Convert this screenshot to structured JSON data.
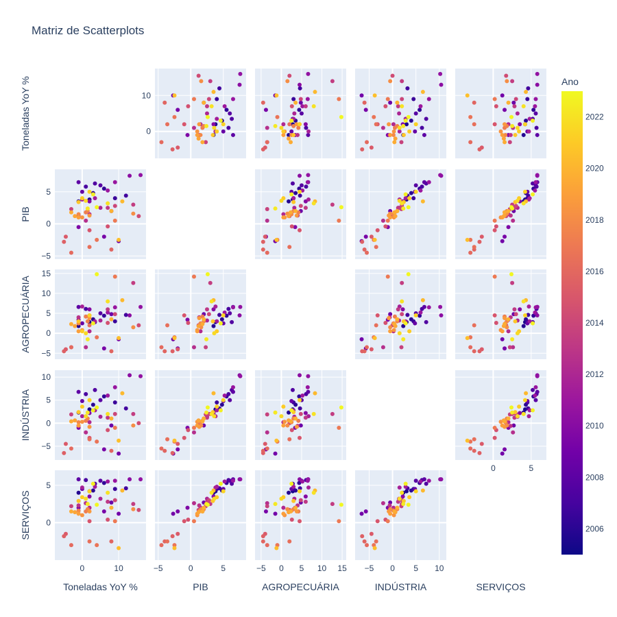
{
  "chart_data": {
    "type": "scatter",
    "title": "Matriz de Scatterplots",
    "variables": [
      "Toneladas YoY %",
      "PIB",
      "AGROPECUÁRIA",
      "INDÚSTRIA",
      "SERVIÇOS"
    ],
    "color_variable": "Ano",
    "colorbar": {
      "title": "Ano",
      "range": [
        2005,
        2023
      ],
      "ticks": [
        2006,
        2008,
        2010,
        2012,
        2014,
        2016,
        2018,
        2020,
        2022
      ],
      "colorscale": "plasma"
    },
    "axes": [
      {
        "name": "Toneladas YoY %",
        "range": [
          -7.5,
          17.5
        ],
        "ticks": [
          0,
          10
        ]
      },
      {
        "name": "PIB",
        "range": [
          -5.5,
          8.5
        ],
        "ticks": [
          -5,
          0,
          5
        ]
      },
      {
        "name": "AGROPECUÁRIA",
        "range": [
          -6.5,
          16
        ],
        "ticks": [
          -5,
          0,
          5,
          10,
          15
        ]
      },
      {
        "name": "INDÚSTRIA",
        "range": [
          -8,
          11.5
        ],
        "ticks": [
          -5,
          0,
          5,
          10
        ]
      },
      {
        "name": "SERVIÇOS",
        "range": [
          -5,
          7
        ],
        "ticks": [
          0,
          5
        ]
      }
    ],
    "diagonal_visible": false,
    "points": [
      {
        "ano": 2005.5,
        "values": [
          2,
          3.8,
          2.8,
          3.0,
          4.2
        ]
      },
      {
        "ano": 2005.8,
        "values": [
          -1,
          3.5,
          1.8,
          2.3,
          4.0
        ]
      },
      {
        "ano": 2006.0,
        "values": [
          3,
          4.8,
          3.5,
          4.0,
          4.3
        ]
      },
      {
        "ano": 2006.3,
        "values": [
          6,
          5.5,
          4.4,
          5.8,
          5.3
        ]
      },
      {
        "ano": 2006.6,
        "values": [
          9,
          4.0,
          3.0,
          4.5,
          4.5
        ]
      },
      {
        "ano": 2006.9,
        "values": [
          12,
          4.4,
          4.6,
          3.2,
          4.6
        ]
      },
      {
        "ano": 2007.2,
        "values": [
          1,
          5.8,
          6.1,
          6.3,
          5.7
        ]
      },
      {
        "ano": 2007.5,
        "values": [
          3.5,
          6.3,
          2.8,
          7.2,
          5.2
        ]
      },
      {
        "ano": 2007.8,
        "values": [
          5,
          6.0,
          5.0,
          5.0,
          5.6
        ]
      },
      {
        "ano": 2008.1,
        "values": [
          -1,
          6.5,
          6.6,
          6.8,
          5.8
        ]
      },
      {
        "ano": 2008.4,
        "values": [
          0,
          5.0,
          2.5,
          4.8,
          4.5
        ]
      },
      {
        "ano": 2008.7,
        "values": [
          8,
          2.0,
          4.8,
          -0.5,
          2.7
        ]
      },
      {
        "ano": 2009.0,
        "values": [
          10,
          -2.7,
          -1.5,
          -6.6,
          1.2
        ]
      },
      {
        "ano": 2009.3,
        "values": [
          6,
          -2.0,
          -3.8,
          -5.7,
          1.5
        ]
      },
      {
        "ano": 2009.6,
        "values": [
          -1,
          -0.5,
          3.4,
          -1.0,
          2.0
        ]
      },
      {
        "ano": 2009.9,
        "values": [
          2,
          3.5,
          6.0,
          2.2,
          3.5
        ]
      },
      {
        "ano": 2010.2,
        "values": [
          13,
          7.5,
          4.5,
          10.4,
          5.8
        ]
      },
      {
        "ano": 2010.5,
        "values": [
          16,
          7.6,
          6.6,
          10.2,
          5.8
        ]
      },
      {
        "ano": 2010.8,
        "values": [
          9,
          6.5,
          6.5,
          7.8,
          5.6
        ]
      },
      {
        "ano": 2011.0,
        "values": [
          7,
          5.2,
          5.2,
          6.0,
          5.5
        ]
      },
      {
        "ano": 2011.3,
        "values": [
          3.5,
          4.0,
          3.0,
          2.8,
          4.8
        ]
      },
      {
        "ano": 2011.6,
        "values": [
          0,
          3.8,
          6.7,
          1.5,
          4.7
        ]
      },
      {
        "ano": 2011.9,
        "values": [
          5,
          2.5,
          3.2,
          1.4,
          3.2
        ]
      },
      {
        "ano": 2012.2,
        "values": [
          2,
          1.5,
          0.5,
          0.2,
          2.0
        ]
      },
      {
        "ano": 2012.5,
        "values": [
          1,
          0.5,
          -3.5,
          -2.0,
          2.6
        ]
      },
      {
        "ano": 2012.8,
        "values": [
          -1,
          1.3,
          4.0,
          -0.6,
          2.3
        ]
      },
      {
        "ano": 2013.1,
        "values": [
          7,
          2.5,
          6.0,
          1.2,
          2.8
        ]
      },
      {
        "ano": 2013.4,
        "values": [
          14,
          3.0,
          12.6,
          2.0,
          2.5
        ]
      },
      {
        "ano": 2013.7,
        "values": [
          -3,
          2.3,
          -3.5,
          1.9,
          2.2
        ]
      },
      {
        "ano": 2014.0,
        "values": [
          9,
          2.8,
          4.8,
          2.0,
          3.0
        ]
      },
      {
        "ano": 2014.3,
        "values": [
          15.5,
          1.2,
          2.0,
          0.0,
          1.7
        ]
      },
      {
        "ano": 2014.6,
        "values": [
          7,
          -0.4,
          2.6,
          -1.5,
          0.4
        ]
      },
      {
        "ano": 2014.9,
        "values": [
          2,
          -1.0,
          4.5,
          -3.2,
          0.2
        ]
      },
      {
        "ano": 2015.2,
        "values": [
          -4.5,
          -2.0,
          -4.0,
          -4.5,
          -1.5
        ]
      },
      {
        "ano": 2015.5,
        "values": [
          -5,
          -2.8,
          -4.5,
          -6.5,
          -1.8
        ]
      },
      {
        "ano": 2015.8,
        "values": [
          8,
          -4.0,
          -4.5,
          -6.0,
          -2.5
        ]
      },
      {
        "ano": 2016.1,
        "values": [
          -3,
          -4.5,
          -3.5,
          -5.5,
          -3.0
        ]
      },
      {
        "ano": 2016.4,
        "values": [
          2,
          -3.6,
          2.0,
          -3.5,
          -2.5
        ]
      },
      {
        "ano": 2016.7,
        "values": [
          4,
          -2.5,
          -1.0,
          -4.0,
          -3.0
        ]
      },
      {
        "ano": 2017.0,
        "values": [
          9,
          0.5,
          14.2,
          -1.0,
          0.2
        ]
      },
      {
        "ano": 2017.2,
        "values": [
          1,
          1.8,
          4.2,
          0.5,
          1.5
        ]
      },
      {
        "ano": 2017.5,
        "values": [
          1.5,
          2.0,
          3.0,
          1.0,
          1.8
        ]
      },
      {
        "ano": 2017.8,
        "values": [
          -1,
          1.5,
          2.5,
          0.2,
          1.6
        ]
      },
      {
        "ano": 2018.1,
        "values": [
          14,
          1.6,
          1.5,
          -0.5,
          1.8
        ]
      },
      {
        "ano": 2018.4,
        "values": [
          0,
          1.0,
          0.8,
          0.3,
          1.0
        ]
      },
      {
        "ano": 2018.7,
        "values": [
          2,
          1.3,
          3.8,
          -0.8,
          1.5
        ]
      },
      {
        "ano": 2019.0,
        "values": [
          -1,
          1.0,
          0.5,
          -0.5,
          1.2
        ]
      },
      {
        "ano": 2019.3,
        "values": [
          -2,
          1.2,
          1.8,
          0.6,
          1.4
        ]
      },
      {
        "ano": 2019.6,
        "values": [
          -3,
          1.8,
          2.3,
          0.4,
          1.5
        ]
      },
      {
        "ano": 2019.9,
        "values": [
          8,
          2.0,
          3.5,
          1.0,
          2.0
        ]
      },
      {
        "ano": 2020.2,
        "values": [
          11,
          3.5,
          8.3,
          6.5,
          4.3
        ]
      },
      {
        "ano": 2020.5,
        "values": [
          10,
          -2.5,
          -1.2,
          -3.8,
          -3.4
        ]
      },
      {
        "ano": 2020.8,
        "values": [
          -1,
          3.4,
          3.0,
          2.4,
          2.9
        ]
      },
      {
        "ano": 2021.1,
        "values": [
          0,
          4.0,
          0.5,
          3.6,
          3.4
        ]
      },
      {
        "ano": 2021.4,
        "values": [
          2,
          5.0,
          4.5,
          5.0,
          4.2
        ]
      },
      {
        "ano": 2021.7,
        "values": [
          1,
          3.6,
          0.0,
          1.5,
          3.2
        ]
      },
      {
        "ano": 2022.0,
        "values": [
          7,
          3.2,
          8.0,
          2.0,
          4.0
        ]
      },
      {
        "ano": 2022.3,
        "values": [
          1.5,
          2.4,
          -1.5,
          2.3,
          2.5
        ]
      },
      {
        "ano": 2022.6,
        "values": [
          3,
          4.6,
          2.5,
          2.8,
          5.2
        ]
      },
      {
        "ano": 2022.9,
        "values": [
          4,
          2.6,
          14.8,
          3.4,
          2.4
        ]
      }
    ]
  }
}
